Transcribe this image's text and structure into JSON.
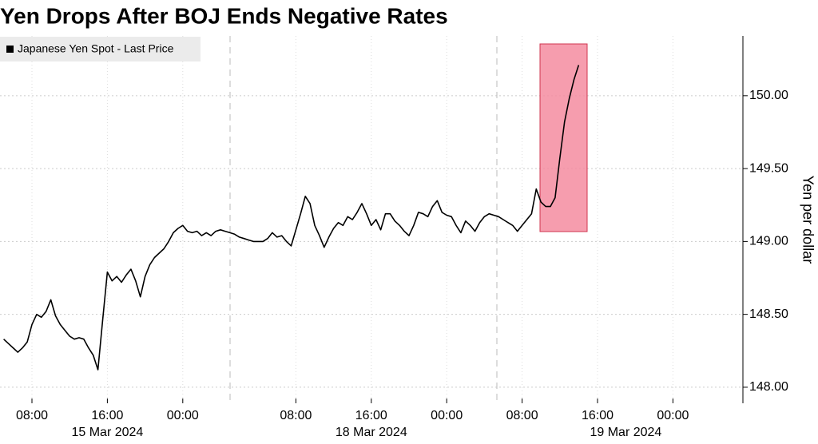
{
  "chart_data": {
    "type": "line",
    "title": "Yen Drops After BOJ Ends Negative Rates",
    "y_label": "Yen per dollar",
    "categories": [
      null,
      null,
      null,
      null,
      null,
      null,
      "08:00",
      null,
      null,
      null,
      null,
      null,
      null,
      null,
      null,
      null,
      null,
      null,
      null,
      null,
      null,
      null,
      "16:00",
      null,
      null,
      null,
      null,
      null,
      null,
      null,
      null,
      null,
      null,
      null,
      null,
      null,
      null,
      null,
      "00:00",
      null,
      null,
      null,
      null,
      null,
      null,
      null,
      null,
      null,
      null,
      null,
      null,
      null,
      null,
      null,
      null,
      null,
      null,
      null,
      null,
      null,
      null,
      null,
      "08:00",
      null,
      null,
      null,
      null,
      null,
      null,
      null,
      null,
      null,
      null,
      null,
      null,
      null,
      null,
      null,
      "16:00",
      null,
      null,
      null,
      null,
      null,
      null,
      null,
      null,
      null,
      null,
      null,
      null,
      null,
      null,
      null,
      "00:00",
      null,
      null,
      null,
      null,
      null,
      null,
      null,
      null,
      null,
      null,
      null,
      null,
      null,
      null,
      null,
      "08:00",
      null,
      null,
      null,
      null,
      null,
      null,
      null,
      null,
      null,
      null,
      null,
      null,
      null,
      null,
      null,
      "16:00",
      null,
      null,
      null,
      null,
      null,
      null,
      null,
      null,
      null,
      null,
      null,
      null,
      null,
      null,
      null,
      "00:00",
      null,
      null,
      null,
      null,
      null,
      null,
      null,
      null,
      null,
      null,
      null,
      null,
      null,
      null
    ],
    "dates": [
      null,
      null,
      null,
      null,
      null,
      null,
      null,
      null,
      null,
      null,
      null,
      null,
      null,
      null,
      null,
      null,
      null,
      null,
      null,
      null,
      null,
      null,
      "15 Mar 2024",
      null,
      null,
      null,
      null,
      null,
      null,
      null,
      null,
      null,
      null,
      null,
      null,
      null,
      null,
      null,
      null,
      null,
      null,
      null,
      null,
      null,
      null,
      null,
      null,
      null,
      null,
      null,
      null,
      null,
      null,
      null,
      null,
      null,
      null,
      null,
      null,
      null,
      null,
      null,
      null,
      null,
      null,
      null,
      null,
      null,
      null,
      null,
      null,
      null,
      null,
      null,
      null,
      null,
      null,
      null,
      "18 Mar 2024",
      null,
      null,
      null,
      null,
      null,
      null,
      null,
      null,
      null,
      null,
      null,
      null,
      null,
      null,
      null,
      null,
      null,
      null,
      null,
      null,
      null,
      null,
      null,
      null,
      null,
      null,
      null,
      null,
      null,
      null,
      null,
      null,
      null,
      null,
      null,
      null,
      null,
      null,
      null,
      null,
      null,
      null,
      null,
      null,
      null,
      null,
      null,
      null,
      null,
      null,
      null,
      null,
      null,
      "19 Mar 2024",
      null,
      null,
      null,
      null,
      null,
      null,
      null,
      null,
      null,
      null,
      null,
      null,
      null,
      null,
      null,
      null,
      null,
      null,
      null,
      null,
      null,
      null,
      null,
      null,
      null,
      null,
      null,
      null,
      null
    ],
    "series": [
      {
        "name": "Japanese Yen Spot - Last Price",
        "color": "#000000",
        "values": [
          148.33,
          148.3,
          148.27,
          148.24,
          148.27,
          148.31,
          148.43,
          148.5,
          148.48,
          148.52,
          148.6,
          148.49,
          148.43,
          148.39,
          148.35,
          148.33,
          148.34,
          148.33,
          148.27,
          148.22,
          148.12,
          148.46,
          148.79,
          148.73,
          148.76,
          148.72,
          148.77,
          148.81,
          148.73,
          148.62,
          148.76,
          148.84,
          148.89,
          148.92,
          148.95,
          149.0,
          149.06,
          149.09,
          149.11,
          149.07,
          149.06,
          149.07,
          149.04,
          149.06,
          149.04,
          149.07,
          149.08,
          149.07,
          149.06,
          149.05,
          149.03,
          149.02,
          149.01,
          149.0,
          149.0,
          149.0,
          149.02,
          149.06,
          149.03,
          149.04,
          149.0,
          148.97,
          149.08,
          149.19,
          149.31,
          149.26,
          149.11,
          149.04,
          148.96,
          149.03,
          149.09,
          149.13,
          149.11,
          149.17,
          149.15,
          149.2,
          149.26,
          149.19,
          149.11,
          149.15,
          149.08,
          149.19,
          149.19,
          149.14,
          149.11,
          149.07,
          149.04,
          149.11,
          149.2,
          149.19,
          149.17,
          149.24,
          149.28,
          149.2,
          149.18,
          149.17,
          149.11,
          149.06,
          149.14,
          149.11,
          149.07,
          149.13,
          149.17,
          149.19,
          149.18,
          149.17,
          149.15,
          149.13,
          149.11,
          149.07,
          149.11,
          149.15,
          149.19,
          149.36,
          149.27,
          149.24,
          149.24,
          149.3,
          149.57,
          149.82,
          149.98,
          150.11,
          150.21,
          null,
          null,
          null,
          null,
          null,
          null,
          null,
          null,
          null,
          null,
          null,
          null,
          null,
          null,
          null,
          null,
          null,
          null,
          null,
          null,
          null,
          null,
          null,
          null,
          null,
          null,
          null,
          null,
          null,
          null,
          null,
          null,
          null,
          null
        ]
      }
    ],
    "ylim": [
      147.89,
      150.41
    ],
    "yticks": [
      {
        "value": 148,
        "label": "148.00"
      },
      {
        "value": 148.5,
        "label": "148.50"
      },
      {
        "value": 149,
        "label": "149.00"
      },
      {
        "value": 149.5,
        "label": "149.50"
      },
      {
        "value": 150,
        "label": "150.00"
      }
    ],
    "grid": true,
    "legend": "top-left"
  }
}
